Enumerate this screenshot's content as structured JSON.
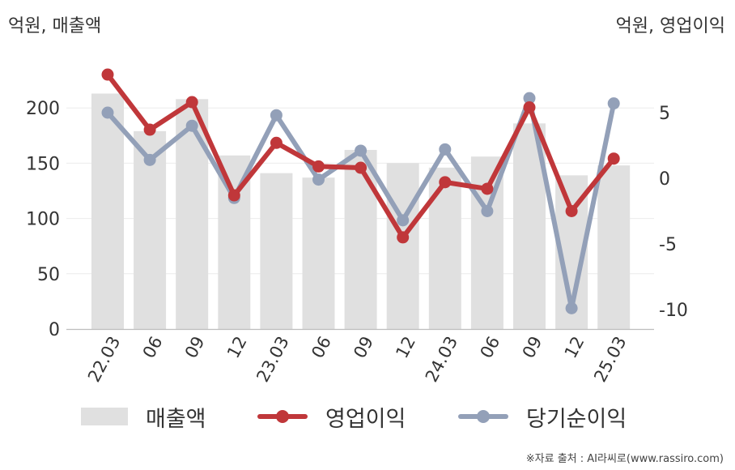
{
  "units": {
    "left": "억원, 매출액",
    "right": "억원, 영업이익"
  },
  "chart_data": {
    "type": "bar+line",
    "categories": [
      "22.03",
      "06",
      "09",
      "12",
      "23.03",
      "06",
      "09",
      "12",
      "24.03",
      "06",
      "09",
      "12",
      "25.03"
    ],
    "bar_series": {
      "name": "매출액",
      "axis": "left",
      "color": "#e0e0e0",
      "values": [
        213,
        179,
        208,
        157,
        141,
        137,
        162,
        150,
        146,
        156,
        186,
        139,
        148
      ]
    },
    "line_series": [
      {
        "name": "영업이익",
        "axis": "right",
        "color": "#c0373a",
        "values": [
          7.9,
          3.7,
          5.8,
          -1.3,
          2.7,
          0.9,
          0.8,
          -4.5,
          -0.3,
          -0.8,
          5.4,
          -2.5,
          1.5
        ]
      },
      {
        "name": "당기순이익",
        "axis": "right",
        "color": "#93a0b8",
        "values": [
          5.0,
          1.4,
          4.0,
          -1.5,
          4.8,
          -0.1,
          2.1,
          -3.2,
          2.2,
          -2.5,
          6.1,
          -9.9,
          5.7
        ]
      }
    ],
    "left_axis": {
      "min": 0,
      "max": 250,
      "ticks": [
        0,
        50,
        100,
        150,
        200
      ]
    },
    "right_axis": {
      "min": -12,
      "max": 13,
      "ticks": [
        5,
        0,
        -5,
        -10
      ],
      "tick_labels": [
        "5",
        "0",
        "-5",
        "-10"
      ]
    },
    "grid": true,
    "legend_position": "bottom"
  },
  "source": "※자료 출처 : AI라씨로(www.rassiro.com)"
}
